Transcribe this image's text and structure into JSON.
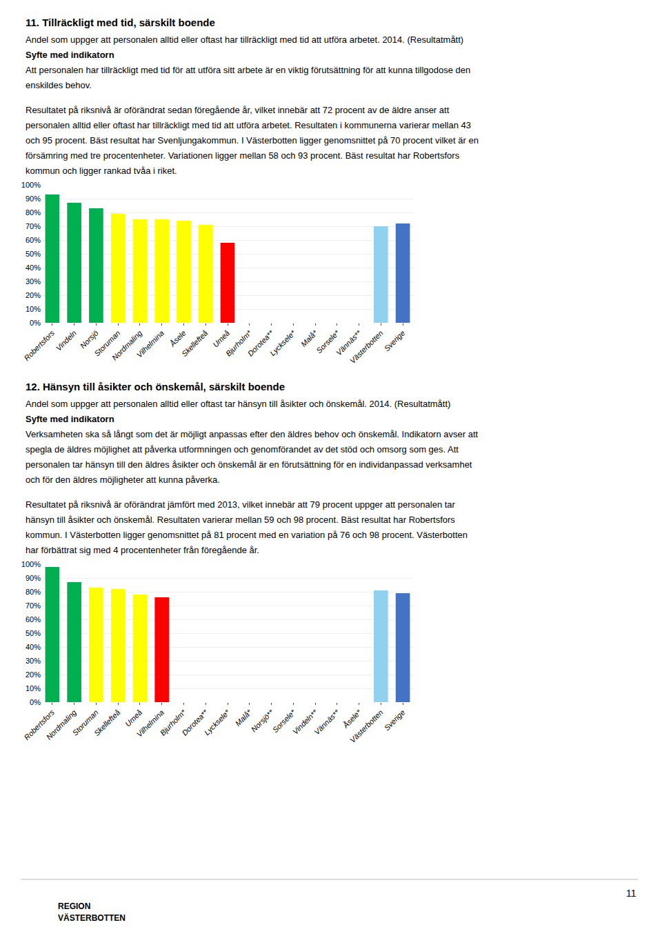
{
  "chart_data": [
    {
      "type": "bar",
      "title": "11. Tillräckligt med tid, särskilt boende",
      "subtitle": "Andel som uppger att personalen alltid eller oftast har tillräckligt med tid att utföra arbetet. 2014. (Resultatmått)",
      "annotations": [
        "Syfte med indikatorn",
        "Att personalen har tillräckligt med tid för att utföra sitt arbete är en viktig förutsättning för att kunna tillgodose den",
        "enskildes behov.",
        "Resultatet på riksnivå är oförändrat sedan föregående år, vilket innebär att 72 procent av de äldre anser att",
        "personalen alltid eller oftast har tillräckligt med tid att utföra arbetet. Resultaten i kommunerna varierar mellan 43",
        "och 95 procent. Bäst resultat har Svenljungakommun. I Västerbotten ligger genomsnittet på 70 procent vilket är en",
        "försämring med tre procentenheter. Variationen ligger mellan 58 och 93 procent. Bäst resultat har Robertsfors",
        "kommun och ligger rankad tvåa i riket."
      ],
      "categories": [
        "Robertsfors",
        "Vindeln",
        "Norsjö",
        "Storuman",
        "Nordmaling",
        "Vilhelmina",
        "Åsele",
        "Skellefteå",
        "Umeå",
        "Bjurholm*",
        "Dorotea**",
        "Lycksele*",
        "Malå*",
        "Sorsele*",
        "Vännäs**",
        "Västerbotten",
        "Sverige"
      ],
      "values": [
        93,
        87,
        83,
        79,
        75,
        75,
        74,
        71,
        58,
        null,
        null,
        null,
        null,
        null,
        null,
        70,
        72
      ],
      "colors": [
        "#00b050",
        "#00b050",
        "#00b050",
        "#ffff00",
        "#ffff00",
        "#ffff00",
        "#ffff00",
        "#ffff00",
        "#ff0000",
        "#c0c0c0",
        "#c0c0c0",
        "#c0c0c0",
        "#c0c0c0",
        "#c0c0c0",
        "#c0c0c0",
        "#92d0f0",
        "#4472c4"
      ],
      "ylim": [
        0,
        100
      ],
      "yticks": [
        {
          "value": 0,
          "label": "0%"
        },
        {
          "value": 10,
          "label": "10%"
        },
        {
          "value": 20,
          "label": "20%"
        },
        {
          "value": 30,
          "label": "30%"
        },
        {
          "value": 40,
          "label": "40%"
        },
        {
          "value": 50,
          "label": "50%"
        },
        {
          "value": 60,
          "label": "60%"
        },
        {
          "value": 70,
          "label": "70%"
        },
        {
          "value": 80,
          "label": "80%"
        },
        {
          "value": 90,
          "label": "90%"
        },
        {
          "value": 100,
          "label": "100%"
        }
      ],
      "grid": true
    },
    {
      "type": "bar",
      "title": "12. Hänsyn till åsikter och önskemål, särskilt boende",
      "subtitle": "Andel som uppger att personalen alltid eller oftast tar hänsyn till åsikter och önskemål. 2014. (Resultatmått)",
      "annotations": [
        "Syfte med indikatorn",
        "Verksamheten ska så långt som det är möjligt anpassas efter den äldres behov och önskemål. Indikatorn avser att",
        "spegla de äldres möjlighet att påverka utformningen och genomförandet av det stöd och omsorg som ges. Att",
        "personalen tar hänsyn till den äldres åsikter och önskemål är en förutsättning för en individanpassad verksamhet",
        "och för den äldres möjligheter att kunna påverka.",
        "Resultatet på riksnivå är oförändrat jämfört med 2013, vilket innebär att 79 procent uppger att personalen tar",
        "hänsyn till åsikter och önskemål. Resultaten varierar mellan 59 och 98 procent. Bäst resultat har Robertsfors",
        "kommun. I Västerbotten ligger genomsnittet på 81 procent med en variation på 76 och 98 procent. Västerbotten",
        "har förbättrat sig med 4 procentenheter från föregående år.",
        "11",
        "REGION",
        "VÄSTERBOTTEN"
      ],
      "categories": [
        "Robertsfors",
        "Nordmaling",
        "Storuman",
        "Skellefteå",
        "Umeå",
        "Vilhelmina",
        "Bjurholm*",
        "Dorotea**",
        "Lycksele*",
        "Malå*",
        "Norsjö**",
        "Sorsele*",
        "Vindeln**",
        "Vännäs**",
        "Åsele*",
        "Västerbotten",
        "Sverige"
      ],
      "values": [
        98,
        87,
        83,
        82,
        78,
        76,
        null,
        null,
        null,
        null,
        null,
        null,
        null,
        null,
        null,
        81,
        79
      ],
      "colors": [
        "#00b050",
        "#00b050",
        "#ffff00",
        "#ffff00",
        "#ffff00",
        "#ff0000",
        "#c0c0c0",
        "#c0c0c0",
        "#c0c0c0",
        "#c0c0c0",
        "#c0c0c0",
        "#c0c0c0",
        "#c0c0c0",
        "#c0c0c0",
        "#c0c0c0",
        "#92d0f0",
        "#4472c4"
      ],
      "ylim": [
        0,
        100
      ],
      "yticks": [
        {
          "value": 0,
          "label": "0%"
        },
        {
          "value": 10,
          "label": "10%"
        },
        {
          "value": 20,
          "label": "20%"
        },
        {
          "value": 30,
          "label": "30%"
        },
        {
          "value": 40,
          "label": "40%"
        },
        {
          "value": 50,
          "label": "50%"
        },
        {
          "value": 60,
          "label": "60%"
        },
        {
          "value": 70,
          "label": "70%"
        },
        {
          "value": 80,
          "label": "80%"
        },
        {
          "value": 90,
          "label": "90%"
        },
        {
          "value": 100,
          "label": "100%"
        }
      ],
      "grid": true
    }
  ]
}
